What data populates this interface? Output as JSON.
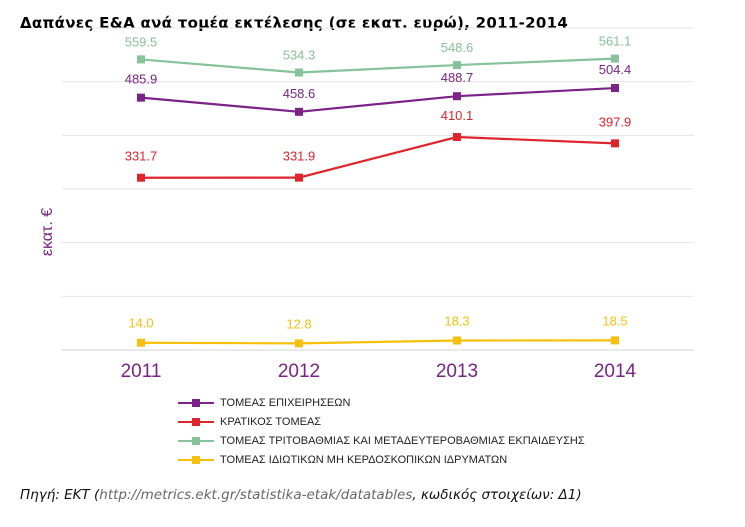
{
  "title": "Δαπάνες Ε&Α ανά τομέα εκτέλεσης (σε εκατ. ευρώ), 2011-2014",
  "chart_data": {
    "type": "line",
    "title": "Δαπάνες Ε&Α ανά τομέα εκτέλεσης (σε εκατ. ευρώ), 2011-2014",
    "xlabel": "",
    "ylabel": "εκατ. €",
    "categories": [
      "2011",
      "2012",
      "2013",
      "2014"
    ],
    "ylim": [
      0,
      620
    ],
    "grid": true,
    "legend_position": "bottom",
    "series": [
      {
        "name": "ΤΟΜΕΑΣ ΕΠΙΧΕΙΡΗΣΕΩΝ",
        "color": "#7b2386",
        "values": [
          485.9,
          458.6,
          488.7,
          504.4
        ],
        "labels": [
          "485.9",
          "458.6",
          "488.7",
          "504.4"
        ]
      },
      {
        "name": "ΚΡΑΤΙΚΟΣ ΤΟΜΕΑΣ",
        "color": "#e0242b",
        "values": [
          331.7,
          331.9,
          410.1,
          397.9
        ],
        "labels": [
          "331.7",
          "331.9",
          "410.1",
          "397.9"
        ]
      },
      {
        "name": "ΤΟΜΕΑΣ ΤΡΙΤΟΒΑΘΜΙΑΣ ΚΑΙ ΜΕΤΑΔΕΥΤΕΡΟΒΑΘΜΙΑΣ ΕΚΠΑΙΔΕΥΣΗΣ",
        "color": "#86c29a",
        "values": [
          559.5,
          534.3,
          548.6,
          561.1
        ],
        "labels": [
          "559.5",
          "534.3",
          "548.6",
          "561.1"
        ]
      },
      {
        "name": "ΤΟΜΕΑΣ ΙΔΙΩΤΙΚΩΝ ΜΗ ΚΕΡΔΟΣΚΟΠΙΚΩΝ ΙΔΡΥΜΑΤΩΝ",
        "color": "#f7bf0b",
        "values": [
          14.0,
          12.8,
          18.3,
          18.5
        ],
        "labels": [
          "14.0",
          "12.8",
          "18.3",
          "18.5"
        ]
      }
    ]
  },
  "source": {
    "prefix": "Πηγή: ΕΚΤ (",
    "url": "http://metrics.ekt.gr/statistika-etak/datatables",
    "suffix": ", κωδικός στοιχείων: Δ1)"
  },
  "colors": {
    "axis_label": "#7b2386",
    "grid": "#e4e4e4",
    "tick_label": "#7b2386"
  }
}
